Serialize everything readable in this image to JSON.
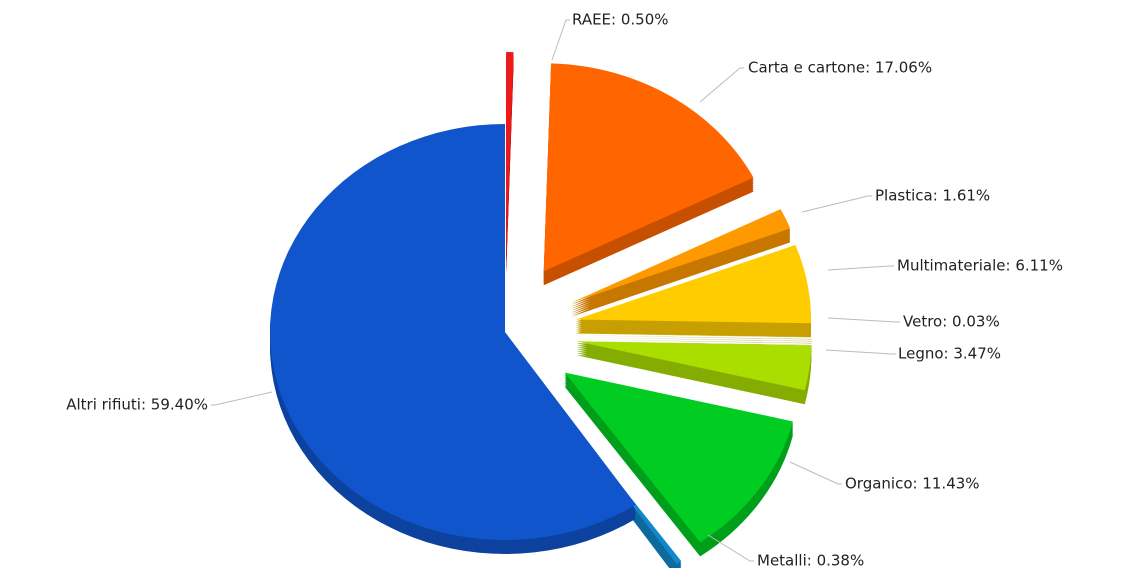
{
  "chart_data": {
    "type": "pie",
    "categories": [
      "RAEE: 0.50%",
      "Carta e cartone: 17.06%",
      "Plastica: 1.61%",
      "Multimateriale: 6.11%",
      "Vetro: 0.03%",
      "Legno: 3.47%",
      "Organico: 11.43%",
      "Metalli: 0.38%",
      "Altri rifiuti: 59.40%"
    ],
    "values": [
      0.5,
      17.06,
      1.61,
      6.11,
      0.03,
      3.47,
      11.43,
      0.38,
      59.4
    ],
    "colors": [
      "#ee1a1a",
      "#ff6600",
      "#ff9900",
      "#ffcc00",
      "#cccc33",
      "#aadd00",
      "#00cc22",
      "#1188cc",
      "#1155cc"
    ],
    "exploded": [
      true,
      true,
      true,
      true,
      true,
      true,
      true,
      true,
      false
    ]
  }
}
